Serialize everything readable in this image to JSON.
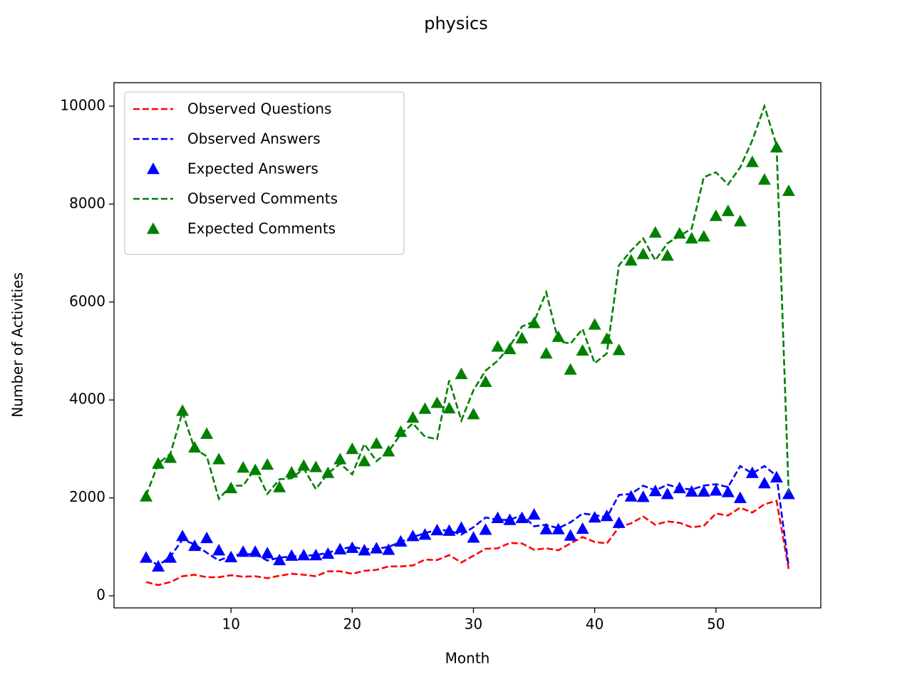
{
  "chart_data": {
    "type": "line",
    "title": "physics",
    "x_label": "Month",
    "y_label": "Number of Activities",
    "x": [
      3,
      4,
      5,
      6,
      7,
      8,
      9,
      10,
      11,
      12,
      13,
      14,
      15,
      16,
      17,
      18,
      19,
      20,
      21,
      22,
      23,
      24,
      25,
      26,
      27,
      28,
      29,
      30,
      31,
      32,
      33,
      34,
      35,
      36,
      37,
      38,
      39,
      40,
      41,
      42,
      43,
      44,
      45,
      46,
      47,
      48,
      49,
      50,
      51,
      52,
      53,
      54,
      55,
      56
    ],
    "series": [
      {
        "name": "Observed Questions",
        "color": "#ff0000",
        "style": "dashed",
        "values": [
          280,
          220,
          280,
          400,
          430,
          380,
          380,
          420,
          390,
          400,
          360,
          410,
          450,
          430,
          400,
          500,
          500,
          450,
          510,
          530,
          600,
          600,
          620,
          740,
          730,
          830,
          680,
          820,
          960,
          970,
          1080,
          1070,
          940,
          970,
          930,
          1070,
          1200,
          1100,
          1070,
          1400,
          1480,
          1620,
          1450,
          1520,
          1490,
          1400,
          1430,
          1680,
          1640,
          1800,
          1700,
          1870,
          1940,
          550
        ]
      },
      {
        "name": "Observed Answers",
        "color": "#0000ff",
        "style": "dashed",
        "values": [
          780,
          620,
          800,
          1150,
          1050,
          880,
          720,
          820,
          850,
          850,
          720,
          780,
          800,
          820,
          830,
          880,
          950,
          1000,
          950,
          960,
          1000,
          1100,
          1200,
          1280,
          1350,
          1330,
          1250,
          1400,
          1600,
          1550,
          1550,
          1650,
          1420,
          1450,
          1380,
          1500,
          1680,
          1650,
          1600,
          2060,
          2080,
          2250,
          2150,
          2270,
          2200,
          2170,
          2250,
          2280,
          2220,
          2650,
          2500,
          2650,
          2450,
          600
        ]
      },
      {
        "name": "Expected Answers",
        "color": "#0000ff",
        "style": "triangle",
        "values": [
          780,
          600,
          780,
          1220,
          1020,
          1180,
          930,
          790,
          900,
          900,
          870,
          730,
          820,
          830,
          830,
          860,
          950,
          980,
          930,
          970,
          940,
          1110,
          1220,
          1250,
          1340,
          1330,
          1390,
          1190,
          1350,
          1590,
          1550,
          1590,
          1660,
          1360,
          1360,
          1230,
          1370,
          1600,
          1630,
          1490,
          2030,
          2020,
          2140,
          2080,
          2200,
          2130,
          2130,
          2150,
          2120,
          2000,
          2510,
          2300,
          2420,
          2080
        ]
      },
      {
        "name": "Observed Comments",
        "color": "#008000",
        "style": "dashed",
        "values": [
          2050,
          2700,
          2900,
          3750,
          3000,
          2850,
          1980,
          2250,
          2250,
          2600,
          2080,
          2380,
          2400,
          2600,
          2180,
          2500,
          2700,
          2480,
          3100,
          2750,
          2950,
          3300,
          3520,
          3250,
          3200,
          4400,
          3580,
          4200,
          4600,
          4800,
          5100,
          5500,
          5600,
          6200,
          5200,
          5150,
          5450,
          4750,
          4950,
          6750,
          7050,
          7300,
          6850,
          7200,
          7350,
          7500,
          8550,
          8650,
          8400,
          8750,
          9300,
          10000,
          9200,
          2100
        ]
      },
      {
        "name": "Expected Comments",
        "color": "#008000",
        "style": "triangle",
        "values": [
          2030,
          2700,
          2820,
          3780,
          3030,
          3310,
          2790,
          2200,
          2620,
          2570,
          2680,
          2220,
          2520,
          2660,
          2630,
          2510,
          2790,
          3000,
          2750,
          3110,
          2950,
          3350,
          3640,
          3820,
          3940,
          3830,
          4530,
          3710,
          4370,
          5090,
          5040,
          5260,
          5570,
          4950,
          5290,
          4620,
          5010,
          5540,
          5250,
          5020,
          6850,
          6980,
          7420,
          6950,
          7400,
          7300,
          7340,
          7760,
          7860,
          7650,
          8860,
          8500,
          9160,
          8270
        ]
      }
    ],
    "xlim": [
      0.35,
      58.65
    ],
    "ylim": [
      -247,
      10480
    ],
    "xticks": [
      10,
      20,
      30,
      40,
      50
    ],
    "yticks": [
      0,
      2000,
      4000,
      6000,
      8000,
      10000
    ],
    "legend": "upper left"
  }
}
